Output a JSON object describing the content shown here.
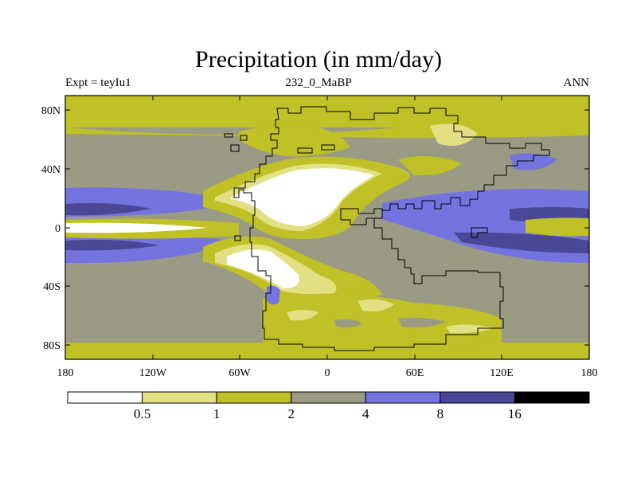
{
  "header": {
    "title": "Precipitation (in mm/day)",
    "left": "Expt = teyIu1",
    "center": "232_0_MaBP",
    "right": "ANN"
  },
  "map": {
    "lon_range": [
      -180,
      180
    ],
    "lat_range": [
      -90,
      90
    ],
    "lat_ticks": [
      "80N",
      "40N",
      "0",
      "40S",
      "80S"
    ],
    "lon_ticks": [
      "180",
      "120W",
      "60W",
      "0",
      "60E",
      "120E",
      "180"
    ]
  },
  "colorbar": {
    "levels": [
      "0.5",
      "1",
      "2",
      "4",
      "8",
      "16"
    ],
    "colors": [
      "#ffffff",
      "#e3e084",
      "#c0c027",
      "#9b9a84",
      "#7474e0",
      "#484896",
      "#000000"
    ]
  }
}
